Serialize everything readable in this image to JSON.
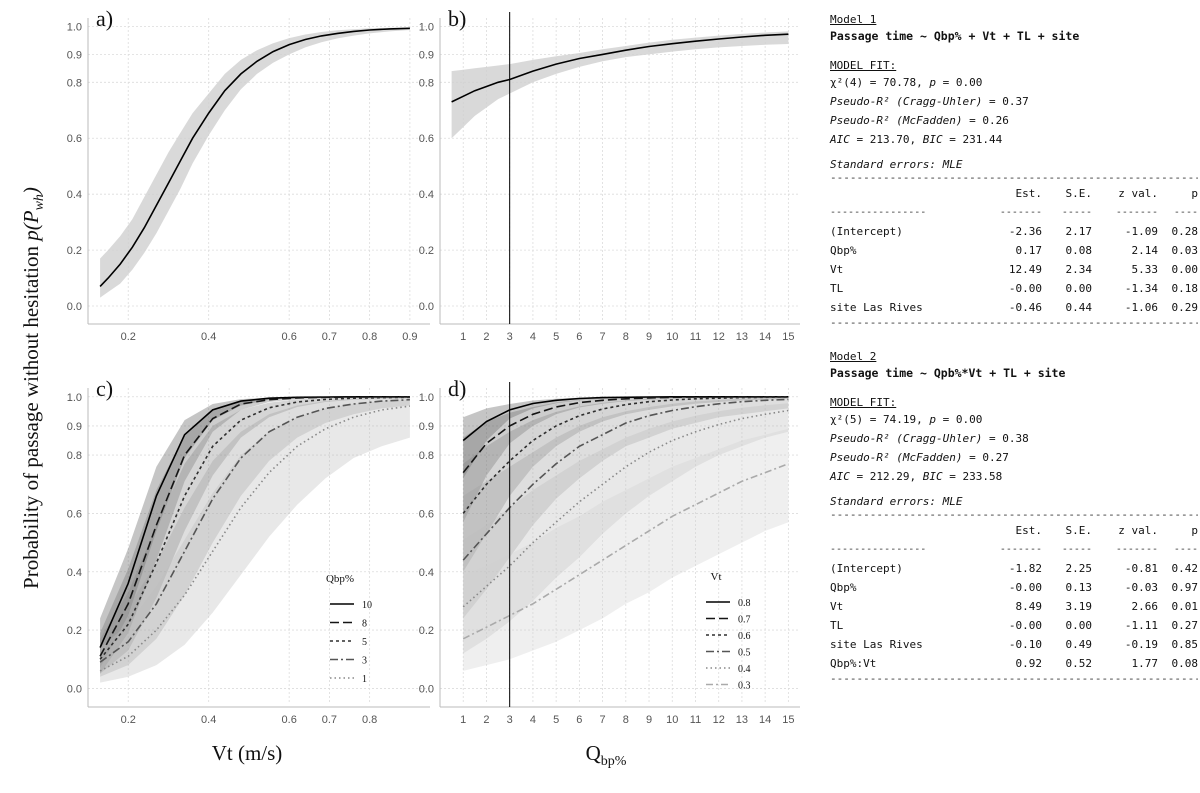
{
  "figure": {
    "y_axis_title": "Probability of passage without hesitation ",
    "y_axis_math": "p(P",
    "y_axis_sub": "wh",
    "y_axis_close": ")",
    "x_axis_left": "Vt (m/s)",
    "x_axis_right_main": "Q",
    "x_axis_right_sub": "bp%"
  },
  "chart_data": [
    {
      "panel": "a)",
      "type": "line",
      "xlabel": "",
      "ylabel": "",
      "x_ticks": [
        "0.2",
        "0.4",
        "0.6",
        "0.7",
        "0.8",
        "0.9"
      ],
      "y_ticks": [
        "0.0",
        "0.2",
        "0.4",
        "0.6",
        "0.8",
        "0.9",
        "1.0"
      ],
      "xlim": [
        0.1,
        0.95
      ],
      "series": [
        {
          "x": [
            0.13,
            0.15,
            0.18,
            0.21,
            0.24,
            0.27,
            0.3,
            0.33,
            0.36,
            0.4,
            0.44,
            0.48,
            0.52,
            0.56,
            0.6,
            0.64,
            0.68,
            0.72,
            0.76,
            0.8,
            0.85,
            0.9
          ],
          "y": [
            0.07,
            0.1,
            0.15,
            0.21,
            0.28,
            0.36,
            0.44,
            0.52,
            0.6,
            0.69,
            0.77,
            0.83,
            0.875,
            0.91,
            0.935,
            0.953,
            0.966,
            0.975,
            0.982,
            0.987,
            0.991,
            0.993
          ],
          "lower": [
            0.03,
            0.05,
            0.08,
            0.13,
            0.19,
            0.26,
            0.34,
            0.42,
            0.51,
            0.61,
            0.7,
            0.775,
            0.83,
            0.87,
            0.9,
            0.925,
            0.943,
            0.957,
            0.967,
            0.975,
            0.982,
            0.987
          ],
          "upper": [
            0.17,
            0.2,
            0.25,
            0.31,
            0.39,
            0.47,
            0.55,
            0.62,
            0.69,
            0.76,
            0.83,
            0.88,
            0.915,
            0.94,
            0.958,
            0.971,
            0.98,
            0.986,
            0.99,
            0.993,
            0.995,
            0.996
          ]
        }
      ]
    },
    {
      "panel": "b)",
      "type": "line",
      "xlabel": "",
      "ylabel": "",
      "x_ticks": [
        "1",
        "2",
        "3",
        "4",
        "5",
        "6",
        "7",
        "8",
        "9",
        "10",
        "11",
        "12",
        "13",
        "14",
        "15"
      ],
      "y_ticks": [
        "0.0",
        "0.2",
        "0.4",
        "0.6",
        "0.8",
        "0.9",
        "1.0"
      ],
      "xlim": [
        0,
        15.5
      ],
      "vline": 3,
      "series": [
        {
          "x": [
            0.5,
            1,
            1.5,
            2,
            2.5,
            3,
            4,
            5,
            6,
            7,
            8,
            9,
            10,
            11,
            12,
            13,
            14,
            15
          ],
          "y": [
            0.73,
            0.75,
            0.77,
            0.785,
            0.8,
            0.81,
            0.84,
            0.865,
            0.885,
            0.9,
            0.915,
            0.928,
            0.938,
            0.947,
            0.955,
            0.962,
            0.968,
            0.972
          ],
          "lower": [
            0.6,
            0.64,
            0.68,
            0.71,
            0.74,
            0.76,
            0.8,
            0.83,
            0.855,
            0.875,
            0.89,
            0.9,
            0.91,
            0.918,
            0.925,
            0.93,
            0.934,
            0.937
          ],
          "upper": [
            0.84,
            0.845,
            0.85,
            0.855,
            0.86,
            0.865,
            0.88,
            0.893,
            0.905,
            0.918,
            0.93,
            0.942,
            0.952,
            0.96,
            0.967,
            0.973,
            0.978,
            0.982
          ]
        }
      ]
    },
    {
      "panel": "c)",
      "type": "line",
      "xlabel": "",
      "ylabel": "",
      "x_ticks": [
        "0.2",
        "0.4",
        "0.6",
        "0.7",
        "0.8"
      ],
      "y_ticks": [
        "0.0",
        "0.2",
        "0.4",
        "0.6",
        "0.8",
        "0.9",
        "1.0"
      ],
      "xlim": [
        0.1,
        0.95
      ],
      "legend": {
        "title": "Qbp%",
        "position": "bottom-right"
      },
      "x": [
        0.13,
        0.2,
        0.27,
        0.34,
        0.41,
        0.48,
        0.55,
        0.62,
        0.69,
        0.76,
        0.83,
        0.9
      ],
      "series": [
        {
          "name": "10",
          "y": [
            0.14,
            0.36,
            0.66,
            0.87,
            0.955,
            0.985,
            0.995,
            0.998,
            0.999,
            1.0,
            1.0,
            1.0
          ],
          "lower": [
            0.07,
            0.25,
            0.54,
            0.79,
            0.92,
            0.97,
            0.99,
            0.996,
            0.998,
            0.999,
            1.0,
            1.0
          ],
          "upper": [
            0.24,
            0.48,
            0.76,
            0.92,
            0.975,
            0.992,
            0.997,
            0.999,
            1.0,
            1.0,
            1.0,
            1.0
          ]
        },
        {
          "name": "8",
          "y": [
            0.11,
            0.29,
            0.56,
            0.8,
            0.925,
            0.975,
            0.99,
            0.996,
            0.998,
            0.999,
            1.0,
            1.0
          ],
          "lower": [
            0.05,
            0.19,
            0.44,
            0.71,
            0.88,
            0.955,
            0.982,
            0.992,
            0.996,
            0.998,
            0.999,
            1.0
          ],
          "upper": [
            0.19,
            0.41,
            0.68,
            0.87,
            0.955,
            0.985,
            0.994,
            0.998,
            0.999,
            1.0,
            1.0,
            1.0
          ]
        },
        {
          "name": "5",
          "y": [
            0.1,
            0.22,
            0.43,
            0.66,
            0.83,
            0.92,
            0.962,
            0.982,
            0.991,
            0.995,
            0.997,
            0.998
          ],
          "lower": [
            0.05,
            0.13,
            0.31,
            0.54,
            0.73,
            0.86,
            0.93,
            0.965,
            0.982,
            0.99,
            0.993,
            0.995
          ],
          "upper": [
            0.17,
            0.33,
            0.56,
            0.77,
            0.9,
            0.955,
            0.98,
            0.991,
            0.996,
            0.998,
            0.999,
            1.0
          ]
        },
        {
          "name": "3",
          "y": [
            0.09,
            0.16,
            0.29,
            0.47,
            0.65,
            0.79,
            0.88,
            0.93,
            0.96,
            0.975,
            0.985,
            0.99
          ],
          "lower": [
            0.04,
            0.08,
            0.17,
            0.32,
            0.5,
            0.66,
            0.78,
            0.86,
            0.91,
            0.94,
            0.96,
            0.97
          ],
          "upper": [
            0.17,
            0.28,
            0.43,
            0.62,
            0.78,
            0.88,
            0.94,
            0.97,
            0.985,
            0.992,
            0.995,
            0.997
          ]
        },
        {
          "name": "1",
          "y": [
            0.06,
            0.11,
            0.2,
            0.32,
            0.47,
            0.62,
            0.74,
            0.83,
            0.89,
            0.93,
            0.955,
            0.968
          ],
          "lower": [
            0.02,
            0.04,
            0.08,
            0.15,
            0.26,
            0.39,
            0.52,
            0.63,
            0.72,
            0.79,
            0.83,
            0.86
          ],
          "upper": [
            0.14,
            0.22,
            0.35,
            0.51,
            0.67,
            0.8,
            0.88,
            0.93,
            0.96,
            0.975,
            0.985,
            0.99
          ]
        }
      ]
    },
    {
      "panel": "d)",
      "type": "line",
      "xlabel": "",
      "ylabel": "",
      "x_ticks": [
        "1",
        "2",
        "3",
        "4",
        "5",
        "6",
        "7",
        "8",
        "9",
        "10",
        "11",
        "12",
        "13",
        "14",
        "15"
      ],
      "y_ticks": [
        "0.0",
        "0.2",
        "0.4",
        "0.6",
        "0.8",
        "0.9",
        "1.0"
      ],
      "xlim": [
        0,
        15.5
      ],
      "vline": 3,
      "legend": {
        "title": "Vt",
        "position": "bottom-right"
      },
      "x": [
        1,
        2,
        3,
        4,
        5,
        6,
        7,
        8,
        9,
        10,
        11,
        12,
        13,
        14,
        15
      ],
      "series": [
        {
          "name": "0.8",
          "y": [
            0.85,
            0.915,
            0.955,
            0.977,
            0.988,
            0.994,
            0.997,
            0.998,
            0.999,
            1.0,
            1.0,
            1.0,
            1.0,
            1.0,
            1.0
          ],
          "lower": [
            0.72,
            0.85,
            0.925,
            0.96,
            0.978,
            0.988,
            0.993,
            0.996,
            0.998,
            0.999,
            0.999,
            1.0,
            1.0,
            1.0,
            1.0
          ],
          "upper": [
            0.93,
            0.96,
            0.975,
            0.987,
            0.993,
            0.997,
            0.998,
            0.999,
            1.0,
            1.0,
            1.0,
            1.0,
            1.0,
            1.0,
            1.0
          ]
        },
        {
          "name": "0.7",
          "y": [
            0.74,
            0.84,
            0.9,
            0.94,
            0.965,
            0.98,
            0.988,
            0.993,
            0.996,
            0.998,
            0.999,
            0.999,
            1.0,
            1.0,
            1.0
          ],
          "lower": [
            0.57,
            0.73,
            0.84,
            0.9,
            0.94,
            0.963,
            0.976,
            0.985,
            0.99,
            0.994,
            0.996,
            0.997,
            0.998,
            0.999,
            0.999
          ],
          "upper": [
            0.86,
            0.915,
            0.945,
            0.965,
            0.98,
            0.989,
            0.994,
            0.997,
            0.998,
            0.999,
            1.0,
            1.0,
            1.0,
            1.0,
            1.0
          ]
        },
        {
          "name": "0.6",
          "y": [
            0.6,
            0.7,
            0.78,
            0.85,
            0.9,
            0.935,
            0.958,
            0.973,
            0.983,
            0.989,
            0.993,
            0.995,
            0.997,
            0.998,
            0.999
          ],
          "lower": [
            0.4,
            0.53,
            0.66,
            0.76,
            0.83,
            0.88,
            0.915,
            0.94,
            0.955,
            0.967,
            0.976,
            0.982,
            0.987,
            0.99,
            0.993
          ],
          "upper": [
            0.77,
            0.83,
            0.88,
            0.92,
            0.948,
            0.967,
            0.979,
            0.987,
            0.992,
            0.995,
            0.997,
            0.998,
            0.999,
            0.999,
            1.0
          ]
        },
        {
          "name": "0.5",
          "y": [
            0.44,
            0.53,
            0.62,
            0.7,
            0.77,
            0.83,
            0.87,
            0.91,
            0.935,
            0.953,
            0.966,
            0.976,
            0.983,
            0.988,
            0.991
          ],
          "lower": [
            0.24,
            0.34,
            0.45,
            0.56,
            0.65,
            0.72,
            0.78,
            0.83,
            0.86,
            0.89,
            0.91,
            0.93,
            0.94,
            0.95,
            0.96
          ],
          "upper": [
            0.66,
            0.71,
            0.76,
            0.81,
            0.86,
            0.9,
            0.93,
            0.95,
            0.965,
            0.976,
            0.984,
            0.989,
            0.993,
            0.995,
            0.997
          ]
        },
        {
          "name": "0.4",
          "y": [
            0.28,
            0.35,
            0.42,
            0.5,
            0.57,
            0.64,
            0.7,
            0.76,
            0.81,
            0.85,
            0.88,
            0.905,
            0.925,
            0.94,
            0.953
          ],
          "lower": [
            0.12,
            0.17,
            0.23,
            0.3,
            0.38,
            0.45,
            0.53,
            0.6,
            0.66,
            0.71,
            0.76,
            0.8,
            0.83,
            0.86,
            0.88
          ],
          "upper": [
            0.51,
            0.56,
            0.62,
            0.68,
            0.73,
            0.78,
            0.82,
            0.86,
            0.89,
            0.915,
            0.935,
            0.95,
            0.962,
            0.971,
            0.978
          ]
        },
        {
          "name": "0.3",
          "y": [
            0.17,
            0.21,
            0.25,
            0.29,
            0.34,
            0.39,
            0.44,
            0.49,
            0.54,
            0.59,
            0.63,
            0.67,
            0.71,
            0.74,
            0.77
          ],
          "lower": [
            0.06,
            0.08,
            0.1,
            0.13,
            0.16,
            0.2,
            0.24,
            0.29,
            0.33,
            0.38,
            0.42,
            0.46,
            0.5,
            0.54,
            0.57
          ],
          "upper": [
            0.39,
            0.42,
            0.46,
            0.5,
            0.55,
            0.59,
            0.64,
            0.68,
            0.72,
            0.76,
            0.79,
            0.82,
            0.85,
            0.87,
            0.89
          ]
        }
      ]
    }
  ],
  "models": [
    {
      "title": "Model 1",
      "formula": "Passage time ~ Qbp% + Vt + TL + site",
      "fit_head": "MODEL FIT:",
      "fit_lines": [
        {
          "label": "χ²(4)",
          "text": " = 70.78, ",
          "p_label": "p",
          "p_text": " = 0.00"
        },
        {
          "label": "Pseudo-R² (Cragg-Uhler)",
          "text": " = 0.37"
        },
        {
          "label": "Pseudo-R² (McFadden)",
          "text": " = 0.26"
        },
        {
          "label": "AIC",
          "text": " = 213.70, ",
          "p_label": "BIC",
          "p_text": " = 231.44"
        }
      ],
      "se": "Standard errors: MLE",
      "columns": [
        "",
        "Est.",
        "S.E.",
        "z val.",
        "p"
      ],
      "rows": [
        [
          "(Intercept)",
          "-2.36",
          "2.17",
          "-1.09",
          "0.28"
        ],
        [
          "Qbp%",
          "0.17",
          "0.08",
          "2.14",
          "0.03"
        ],
        [
          "Vt",
          "12.49",
          "2.34",
          "5.33",
          "0.00"
        ],
        [
          "TL",
          "-0.00",
          "0.00",
          "-1.34",
          "0.18"
        ],
        [
          "site Las Rives",
          "-0.46",
          "0.44",
          "-1.06",
          "0.29"
        ]
      ]
    },
    {
      "title": "Model 2",
      "formula": "Passage time ~ Qpb%*Vt + TL + site",
      "fit_head": "MODEL FIT:",
      "fit_lines": [
        {
          "label": "χ²(5)",
          "text": " = 74.19, ",
          "p_label": "p",
          "p_text": " = 0.00"
        },
        {
          "label": "Pseudo-R² (Cragg-Uhler)",
          "text": " = 0.38"
        },
        {
          "label": "Pseudo-R² (McFadden)",
          "text": " = 0.27"
        },
        {
          "label": "AIC",
          "text": " = 212.29, ",
          "p_label": "BIC",
          "p_text": " = 233.58"
        }
      ],
      "se": "Standard errors: MLE",
      "columns": [
        "",
        "Est.",
        "S.E.",
        "z val.",
        "p"
      ],
      "rows": [
        [
          "(Intercept)",
          "-1.82",
          "2.25",
          "-0.81",
          "0.42"
        ],
        [
          "Qbp%",
          "-0.00",
          "0.13",
          "-0.03",
          "0.97"
        ],
        [
          "Vt",
          "8.49",
          "3.19",
          "2.66",
          "0.01"
        ],
        [
          "TL",
          "-0.00",
          "0.00",
          "-1.11",
          "0.27"
        ],
        [
          "site Las Rives",
          "-0.10",
          "0.49",
          "-0.19",
          "0.85"
        ],
        [
          "Qbp%:Vt",
          "0.92",
          "0.52",
          "1.77",
          "0.08"
        ]
      ]
    }
  ]
}
